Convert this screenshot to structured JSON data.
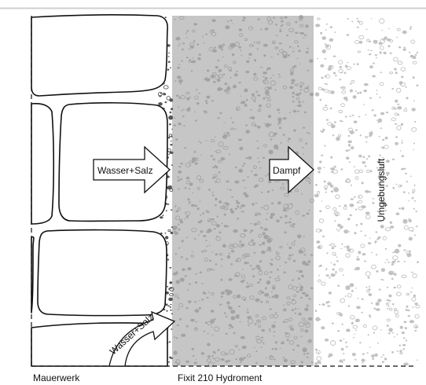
{
  "labels": {
    "water_salt_arrow": "Wasser+Salz",
    "vapor_arrow": "Dampf",
    "ambient_air": "Umgebungsluft",
    "water_salt_curved": "Wasser+Salz",
    "masonry": "Mauerwerk",
    "plaster": "Fixit 210 Hydroment"
  },
  "colors": {
    "plaster_fill": "#c6c6c6",
    "texture_dots": "#a3a3a3",
    "air_dots": "#c2c2c2",
    "stroke": "#111111",
    "background": "#ffffff",
    "top_rule": "#cfcfcf"
  }
}
